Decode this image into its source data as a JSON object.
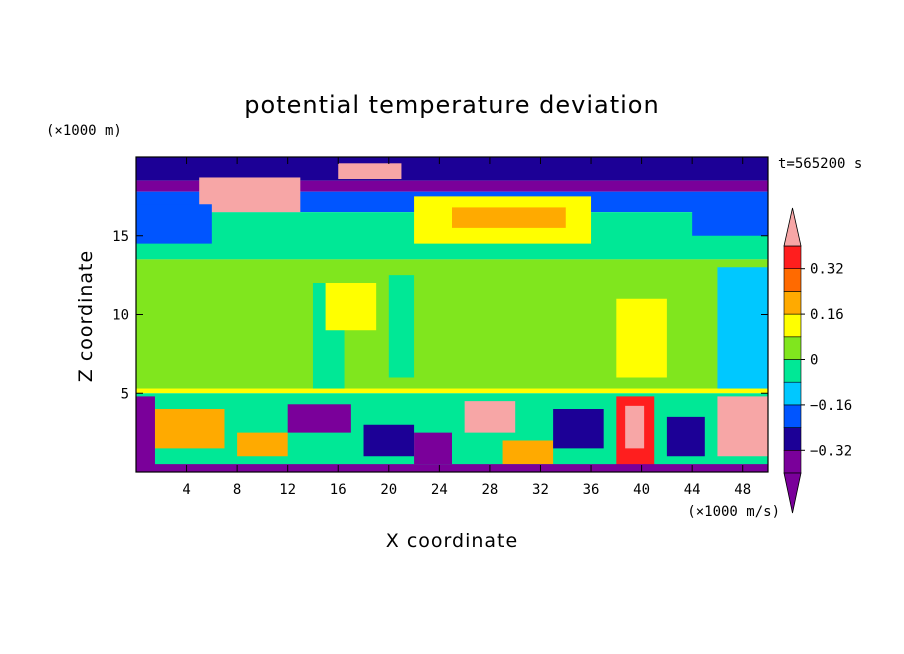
{
  "chart_data": {
    "type": "heatmap",
    "title": "potential temperature deviation",
    "xlabel": "X coordinate",
    "ylabel": "Z coordinate",
    "x_unit": "(×1000 m/s)",
    "y_unit": "(×1000 m)",
    "time_label": "t=565200 s",
    "xlim": [
      0,
      50
    ],
    "ylim": [
      0,
      20
    ],
    "x_ticks": [
      4,
      8,
      12,
      16,
      20,
      24,
      28,
      32,
      36,
      40,
      44,
      48
    ],
    "y_ticks": [
      5,
      10,
      15
    ],
    "colorbar": {
      "levels": [
        -0.4,
        -0.32,
        -0.24,
        -0.16,
        -0.08,
        0,
        0.08,
        0.16,
        0.24,
        0.32,
        0.4
      ],
      "labels": [
        "0.32",
        "0.16",
        "0",
        "−0.16",
        "−0.32"
      ],
      "label_values": [
        0.32,
        0.16,
        0,
        -0.16,
        -0.32
      ],
      "colors": [
        "#7a009a",
        "#1c0096",
        "#0055ff",
        "#00c8ff",
        "#00e896",
        "#80e61e",
        "#ffff00",
        "#ffaa00",
        "#ff6a00",
        "#ff1e1e",
        "#f7a6a6"
      ],
      "extend": "both"
    },
    "field_regions": [
      {
        "x0": 0,
        "x1": 50,
        "y0": 18.5,
        "y1": 20,
        "value": -0.3
      },
      {
        "x0": 0,
        "x1": 50,
        "y0": 17.8,
        "y1": 18.5,
        "value": -0.36
      },
      {
        "x0": 0,
        "x1": 50,
        "y0": 16.5,
        "y1": 17.8,
        "value": -0.2
      },
      {
        "x0": 0,
        "x1": 50,
        "y0": 13.5,
        "y1": 16.5,
        "value": -0.04
      },
      {
        "x0": 0,
        "x1": 50,
        "y0": 5.2,
        "y1": 13.5,
        "value": 0.03
      },
      {
        "x0": 0,
        "x1": 50,
        "y0": 5,
        "y1": 5.3,
        "value": 0.1
      },
      {
        "x0": 0,
        "x1": 50,
        "y0": 0,
        "y1": 5,
        "value": -0.04
      },
      {
        "x0": 22,
        "x1": 36,
        "y0": 14.5,
        "y1": 17.5,
        "value": 0.12
      },
      {
        "x0": 25,
        "x1": 34,
        "y0": 15.5,
        "y1": 16.8,
        "value": 0.2
      },
      {
        "x0": 5,
        "x1": 13,
        "y0": 16.5,
        "y1": 18.7,
        "value": 0.45
      },
      {
        "x0": 16,
        "x1": 21,
        "y0": 18.6,
        "y1": 19.6,
        "value": 0.45
      },
      {
        "x0": 0,
        "x1": 6,
        "y0": 14.5,
        "y1": 17,
        "value": -0.18
      },
      {
        "x0": 44,
        "x1": 50,
        "y0": 15,
        "y1": 17.5,
        "value": -0.22
      },
      {
        "x0": 14,
        "x1": 16.5,
        "y0": 5.3,
        "y1": 12,
        "value": -0.05
      },
      {
        "x0": 20,
        "x1": 22,
        "y0": 6,
        "y1": 12.5,
        "value": -0.05
      },
      {
        "x0": 38,
        "x1": 42,
        "y0": 6,
        "y1": 11,
        "value": 0.1
      },
      {
        "x0": 46,
        "x1": 50,
        "y0": 5.3,
        "y1": 13,
        "value": -0.1
      },
      {
        "x0": 15,
        "x1": 19,
        "y0": 9,
        "y1": 12,
        "value": 0.12
      },
      {
        "x0": 1,
        "x1": 7,
        "y0": 1.5,
        "y1": 4,
        "value": 0.22
      },
      {
        "x0": 8,
        "x1": 12,
        "y0": 1,
        "y1": 2.5,
        "value": 0.2
      },
      {
        "x0": 12,
        "x1": 17,
        "y0": 2.5,
        "y1": 4.3,
        "value": -0.36
      },
      {
        "x0": 18,
        "x1": 22,
        "y0": 1,
        "y1": 3,
        "value": -0.3
      },
      {
        "x0": 22,
        "x1": 25,
        "y0": 0.5,
        "y1": 2.5,
        "value": -0.4
      },
      {
        "x0": 26,
        "x1": 30,
        "y0": 2.5,
        "y1": 4.5,
        "value": 0.4
      },
      {
        "x0": 29,
        "x1": 33,
        "y0": 0.5,
        "y1": 2,
        "value": 0.18
      },
      {
        "x0": 33,
        "x1": 37,
        "y0": 1.5,
        "y1": 4,
        "value": -0.25
      },
      {
        "x0": 38,
        "x1": 41,
        "y0": 0.3,
        "y1": 4.8,
        "value": 0.32
      },
      {
        "x0": 38.7,
        "x1": 40.2,
        "y0": 1.5,
        "y1": 4.2,
        "value": 0.45
      },
      {
        "x0": 42,
        "x1": 45,
        "y0": 1,
        "y1": 3.5,
        "value": -0.32
      },
      {
        "x0": 46,
        "x1": 50,
        "y0": 1,
        "y1": 4.8,
        "value": 0.4
      },
      {
        "x0": 0,
        "x1": 1.5,
        "y0": 0.3,
        "y1": 4.8,
        "value": -0.36
      },
      {
        "x0": 0,
        "x1": 50,
        "y0": 0,
        "y1": 0.5,
        "value": -0.36
      }
    ]
  }
}
